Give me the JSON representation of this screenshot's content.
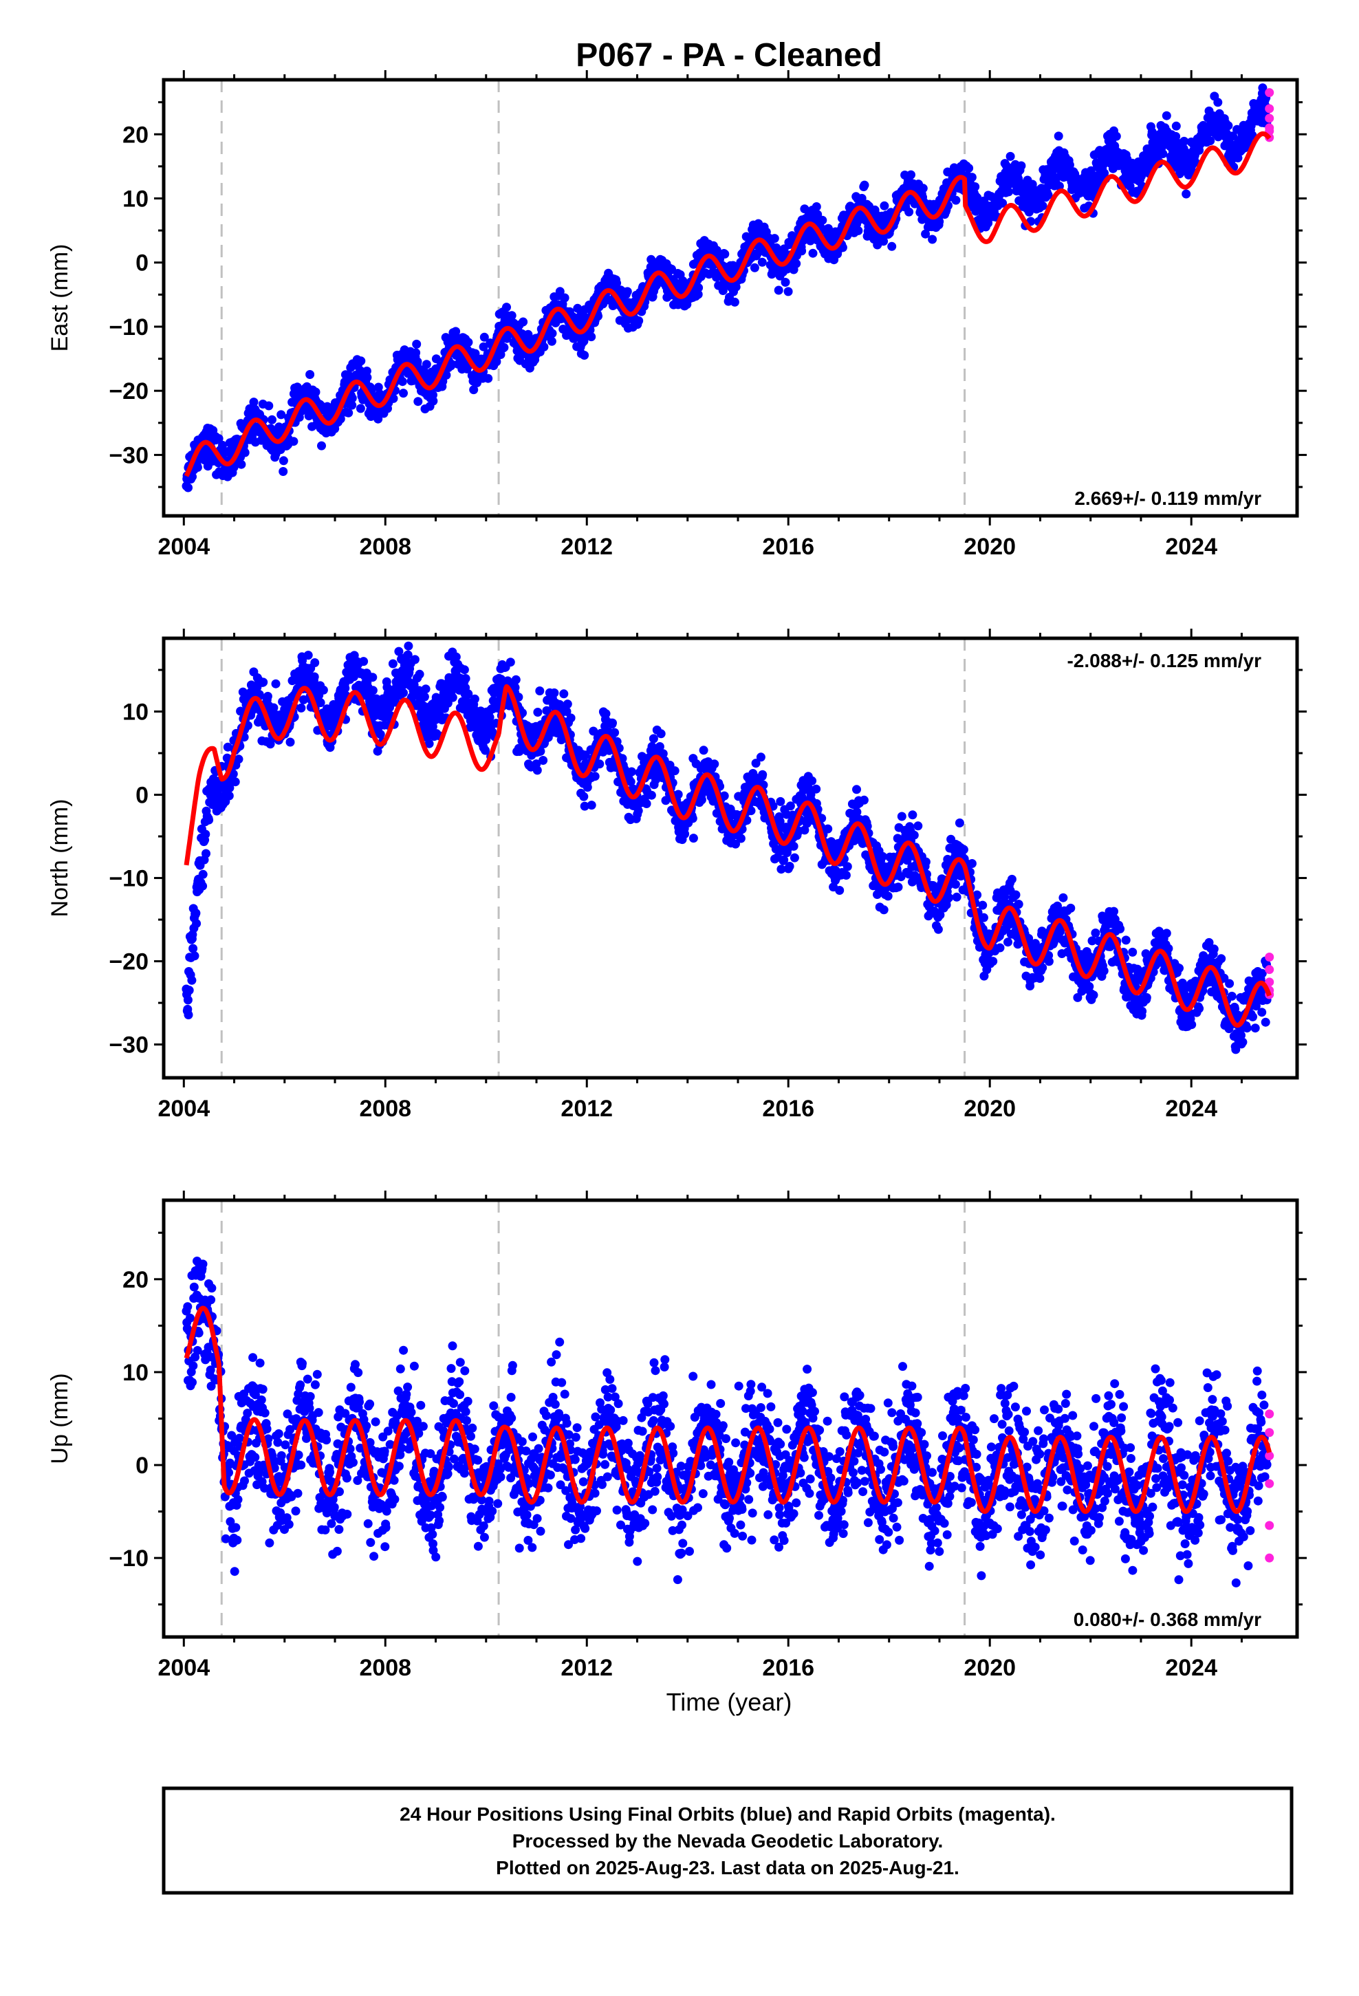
{
  "title": "P067  - PA - Cleaned",
  "colors": {
    "final": "#0000ff",
    "rapid": "#ff22dd",
    "model": "#ff0000",
    "event": "#c0c0c0"
  },
  "chart_data": [
    {
      "type": "scatter",
      "component": "east",
      "ylabel": "East (mm)",
      "xlabel": "",
      "xlim": [
        2003.6,
        2026.1
      ],
      "ylim": [
        -39.5,
        28.5
      ],
      "xticks": [
        2004,
        2008,
        2012,
        2016,
        2020,
        2024
      ],
      "xtick_labels": [
        "2004",
        "2008",
        "2012",
        "2016",
        "2020",
        "2024"
      ],
      "yticks": [
        -30,
        -20,
        -10,
        0,
        10,
        20
      ],
      "ytick_labels": [
        "−30",
        "−20",
        "−10",
        "0",
        "10",
        "20"
      ],
      "rate_label": "2.669+/- 0.119 mm/yr",
      "rate_position": "bottom-right",
      "events": [
        2004.75,
        2010.25,
        2019.5
      ],
      "trend_points": [
        [
          2004.0,
          -32
        ],
        [
          2006.0,
          -25
        ],
        [
          2008.0,
          -19.5
        ],
        [
          2010.0,
          -14
        ],
        [
          2012.0,
          -8
        ],
        [
          2014.0,
          -2.5
        ],
        [
          2016.0,
          2.5
        ],
        [
          2018.0,
          7.5
        ],
        [
          2019.5,
          11
        ],
        [
          2020.0,
          9.5
        ],
        [
          2022.0,
          14
        ],
        [
          2024.0,
          18.5
        ],
        [
          2025.6,
          22
        ]
      ],
      "seasonal_amplitude": 2.5,
      "scatter_sd": 1.5,
      "model_offsets": [
        [
          2019.5,
          -4
        ]
      ],
      "rapid": {
        "x": 2025.55,
        "y": [
          19.5,
          21.0,
          22.5,
          24.0,
          26.5,
          20.5
        ]
      }
    },
    {
      "type": "scatter",
      "component": "north",
      "ylabel": "North (mm)",
      "xlabel": "",
      "xlim": [
        2003.6,
        2026.1
      ],
      "ylim": [
        -34.0,
        18.8
      ],
      "xticks": [
        2004,
        2008,
        2012,
        2016,
        2020,
        2024
      ],
      "xtick_labels": [
        "2004",
        "2008",
        "2012",
        "2016",
        "2020",
        "2024"
      ],
      "yticks": [
        -30,
        -20,
        -10,
        0,
        10
      ],
      "ytick_labels": [
        "−30",
        "−20",
        "−10",
        "0",
        "10"
      ],
      "rate_label": "-2.088+/- 0.125 mm/yr",
      "rate_position": "top-right",
      "events": [
        2004.75,
        2010.25,
        2019.5
      ],
      "trend_points": [
        [
          2004.0,
          -27
        ],
        [
          2004.3,
          -12
        ],
        [
          2004.6,
          0
        ],
        [
          2005.0,
          7
        ],
        [
          2006.0,
          11
        ],
        [
          2008.0,
          12
        ],
        [
          2010.25,
          10.5
        ],
        [
          2012.0,
          5
        ],
        [
          2014.0,
          0
        ],
        [
          2016.0,
          -3
        ],
        [
          2018.0,
          -8
        ],
        [
          2019.5,
          -11
        ],
        [
          2020.0,
          -16
        ],
        [
          2022.0,
          -19
        ],
        [
          2024.0,
          -23
        ],
        [
          2025.6,
          -26
        ]
      ],
      "seasonal_amplitude": 3.0,
      "scatter_sd": 1.6,
      "model_offsets": [
        [
          2004.0,
          19
        ],
        [
          2004.75,
          1
        ],
        [
          2006.0,
          -1
        ],
        [
          2008.0,
          -3
        ],
        [
          2010.25,
          -5
        ],
        [
          2010.4,
          0
        ],
        [
          2025.6,
          0
        ]
      ],
      "rapid": {
        "x": 2025.55,
        "y": [
          -24.0,
          -22.5,
          -21.0,
          -19.5,
          -23.5
        ]
      }
    },
    {
      "type": "scatter",
      "component": "up",
      "ylabel": "Up (mm)",
      "xlabel": "Time (year)",
      "xlim": [
        2003.6,
        2026.1
      ],
      "ylim": [
        -18.5,
        28.5
      ],
      "xticks": [
        2004,
        2008,
        2012,
        2016,
        2020,
        2024
      ],
      "xtick_labels": [
        "2004",
        "2008",
        "2012",
        "2016",
        "2020",
        "2024"
      ],
      "yticks": [
        -10,
        0,
        10,
        20
      ],
      "ytick_labels": [
        "−10",
        "0",
        "10",
        "20"
      ],
      "rate_label": "0.080+/- 0.368 mm/yr",
      "rate_position": "bottom-right",
      "events": [
        2004.75,
        2010.25,
        2019.5
      ],
      "trend_points": [
        [
          2004.0,
          14
        ],
        [
          2004.7,
          12
        ],
        [
          2004.8,
          1
        ],
        [
          2006.0,
          0.8
        ],
        [
          2010.25,
          0.8
        ],
        [
          2010.4,
          0
        ],
        [
          2016.0,
          0
        ],
        [
          2019.5,
          0
        ],
        [
          2019.6,
          -1
        ],
        [
          2025.6,
          -1
        ]
      ],
      "seasonal_amplitude": 4.0,
      "scatter_sd": 3.2,
      "model_offsets": [],
      "rapid": {
        "x": 2025.55,
        "y": [
          -10.0,
          -6.5,
          -2.0,
          1.0,
          3.5,
          5.5
        ]
      }
    }
  ],
  "footer": {
    "line1": "24 Hour Positions Using Final Orbits (blue) and Rapid Orbits (magenta).",
    "line2": "Processed by the Nevada Geodetic Laboratory.",
    "line3": "Plotted on 2025-Aug-23. Last data on 2025-Aug-21."
  }
}
